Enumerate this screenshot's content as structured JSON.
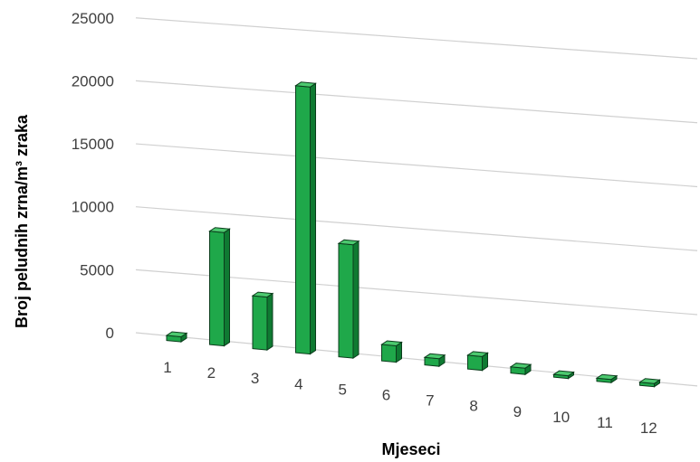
{
  "chart_data": {
    "type": "bar",
    "title": "",
    "xlabel": "Mjeseci",
    "ylabel": "Broj peludnih zrna/m³ zraka",
    "categories": [
      "1",
      "2",
      "3",
      "4",
      "5",
      "6",
      "7",
      "8",
      "9",
      "10",
      "11",
      "12"
    ],
    "values": [
      400,
      9000,
      4200,
      21200,
      9000,
      1300,
      600,
      1100,
      500,
      200,
      250,
      250
    ],
    "y_ticks": [
      "0",
      "5000",
      "10000",
      "15000",
      "20000",
      "25000"
    ],
    "ylim": [
      0,
      25000
    ],
    "grid": true,
    "legend": "none",
    "colors": {
      "bar_front": "#1fa84a",
      "bar_side": "#0f7a32",
      "bar_top": "#4cc96f",
      "bar_edge": "#0b3d1c",
      "grid": "#d0d0d0"
    }
  }
}
